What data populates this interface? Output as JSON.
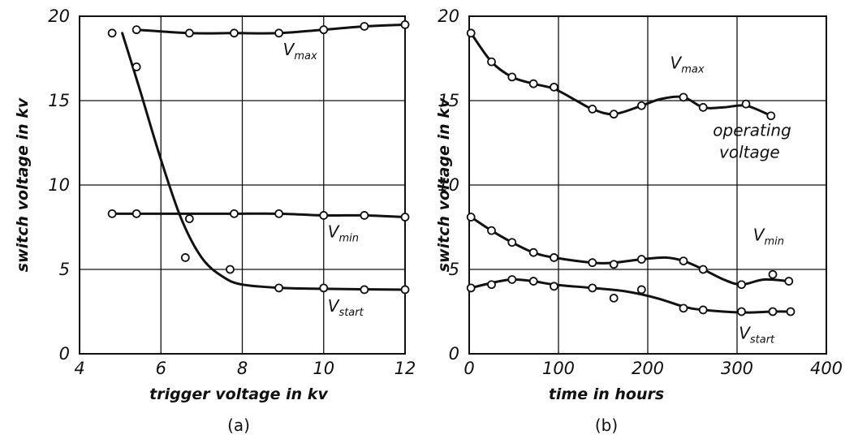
{
  "chart_data": [
    {
      "type": "line",
      "panel_label": "(a)",
      "xlabel": "trigger voltage in kv",
      "ylabel": "switch voltage in kv",
      "xlim": [
        4,
        12
      ],
      "ylim": [
        0,
        20
      ],
      "x_ticks": [
        "4",
        "6",
        "8",
        "10",
        "12"
      ],
      "y_ticks": [
        "0",
        "5",
        "10",
        "15",
        "20"
      ],
      "grid": true,
      "series": [
        {
          "name": "max",
          "points": [
            [
              5.4,
              19.2
            ],
            [
              6.7,
              19.0
            ],
            [
              7.8,
              19.0
            ],
            [
              8.9,
              19.0
            ],
            [
              10.0,
              19.2
            ],
            [
              11.0,
              19.4
            ],
            [
              12.0,
              19.5
            ]
          ],
          "curve": [
            [
              5.4,
              19.2
            ],
            [
              6.7,
              19.0
            ],
            [
              7.8,
              19.0
            ],
            [
              8.9,
              19.0
            ],
            [
              10.0,
              19.2
            ],
            [
              11.0,
              19.4
            ],
            [
              12.0,
              19.5
            ]
          ]
        },
        {
          "name": "min",
          "points": [
            [
              4.8,
              8.3
            ],
            [
              5.4,
              8.3
            ],
            [
              6.7,
              8.0
            ],
            [
              7.8,
              8.3
            ],
            [
              8.9,
              8.3
            ],
            [
              10.0,
              8.2
            ],
            [
              11.0,
              8.2
            ],
            [
              12.0,
              8.1
            ]
          ],
          "curve": [
            [
              4.8,
              8.3
            ],
            [
              5.4,
              8.3
            ],
            [
              6.7,
              8.3
            ],
            [
              7.8,
              8.3
            ],
            [
              8.9,
              8.3
            ],
            [
              10.0,
              8.2
            ],
            [
              11.0,
              8.2
            ],
            [
              12.0,
              8.1
            ]
          ]
        },
        {
          "name": "start",
          "points": [
            [
              4.8,
              19.0
            ],
            [
              5.4,
              17.0
            ],
            [
              6.6,
              5.7
            ],
            [
              7.7,
              5.0
            ],
            [
              8.9,
              3.9
            ],
            [
              10.0,
              3.9
            ],
            [
              11.0,
              3.8
            ],
            [
              12.0,
              3.8
            ]
          ],
          "curve": [
            [
              5.05,
              19.0
            ],
            [
              5.5,
              15.5
            ],
            [
              6.0,
              11.5
            ],
            [
              6.5,
              8.0
            ],
            [
              7.0,
              5.7
            ],
            [
              7.5,
              4.6
            ],
            [
              8.0,
              4.1
            ],
            [
              9.0,
              3.9
            ],
            [
              10.0,
              3.85
            ],
            [
              12.0,
              3.8
            ]
          ]
        }
      ],
      "annotations": [
        {
          "base": "V",
          "sub": "max",
          "x": 9.0,
          "y": 17.7
        },
        {
          "base": "V",
          "sub": "min",
          "x": 10.1,
          "y": 6.9
        },
        {
          "base": "V",
          "sub": "start",
          "x": 10.1,
          "y": 2.5
        }
      ]
    },
    {
      "type": "line",
      "panel_label": "(b)",
      "xlabel": "time in hours",
      "ylabel": "switch voltage in kv",
      "xlim": [
        0,
        400
      ],
      "ylim": [
        0,
        20
      ],
      "x_ticks": [
        "0",
        "100",
        "200",
        "300",
        "400"
      ],
      "y_ticks": [
        "0",
        "5",
        "10",
        "15",
        "20"
      ],
      "grid": true,
      "series": [
        {
          "name": "max",
          "points": [
            [
              2,
              19.0
            ],
            [
              25,
              17.3
            ],
            [
              48,
              16.4
            ],
            [
              72,
              16.0
            ],
            [
              95,
              15.8
            ],
            [
              138,
              14.5
            ],
            [
              162,
              14.2
            ],
            [
              193,
              14.7
            ],
            [
              240,
              15.2
            ],
            [
              262,
              14.6
            ],
            [
              310,
              14.8
            ],
            [
              338,
              14.1
            ]
          ],
          "curve": [
            [
              2,
              19.0
            ],
            [
              25,
              17.3
            ],
            [
              48,
              16.4
            ],
            [
              72,
              16.0
            ],
            [
              95,
              15.7
            ],
            [
              120,
              15.0
            ],
            [
              138,
              14.5
            ],
            [
              162,
              14.2
            ],
            [
              193,
              14.7
            ],
            [
              215,
              15.1
            ],
            [
              240,
              15.2
            ],
            [
              262,
              14.6
            ],
            [
              285,
              14.6
            ],
            [
              310,
              14.7
            ],
            [
              338,
              14.1
            ]
          ]
        },
        {
          "name": "min",
          "points": [
            [
              2,
              8.1
            ],
            [
              25,
              7.3
            ],
            [
              48,
              6.6
            ],
            [
              72,
              6.0
            ],
            [
              95,
              5.7
            ],
            [
              138,
              5.4
            ],
            [
              162,
              5.3
            ],
            [
              193,
              5.6
            ],
            [
              240,
              5.5
            ],
            [
              262,
              5.0
            ],
            [
              305,
              4.1
            ],
            [
              340,
              4.7
            ],
            [
              358,
              4.3
            ]
          ],
          "curve": [
            [
              2,
              8.1
            ],
            [
              25,
              7.3
            ],
            [
              48,
              6.6
            ],
            [
              72,
              6.0
            ],
            [
              95,
              5.7
            ],
            [
              138,
              5.4
            ],
            [
              162,
              5.4
            ],
            [
              193,
              5.6
            ],
            [
              220,
              5.7
            ],
            [
              240,
              5.5
            ],
            [
              262,
              5.0
            ],
            [
              285,
              4.4
            ],
            [
              305,
              4.1
            ],
            [
              330,
              4.4
            ],
            [
              358,
              4.3
            ]
          ]
        },
        {
          "name": "start",
          "points": [
            [
              2,
              3.9
            ],
            [
              25,
              4.1
            ],
            [
              48,
              4.4
            ],
            [
              72,
              4.3
            ],
            [
              95,
              4.0
            ],
            [
              138,
              3.9
            ],
            [
              162,
              3.3
            ],
            [
              193,
              3.8
            ],
            [
              240,
              2.7
            ],
            [
              262,
              2.6
            ],
            [
              305,
              2.5
            ],
            [
              340,
              2.5
            ],
            [
              360,
              2.5
            ]
          ],
          "curve": [
            [
              2,
              3.9
            ],
            [
              25,
              4.2
            ],
            [
              48,
              4.4
            ],
            [
              72,
              4.3
            ],
            [
              95,
              4.1
            ],
            [
              138,
              3.9
            ],
            [
              175,
              3.7
            ],
            [
              210,
              3.3
            ],
            [
              240,
              2.8
            ],
            [
              262,
              2.6
            ],
            [
              305,
              2.45
            ],
            [
              340,
              2.5
            ],
            [
              360,
              2.5
            ]
          ]
        }
      ],
      "annotations": [
        {
          "base": "V",
          "sub": "max",
          "x": 225,
          "y": 16.9
        },
        {
          "base": "V",
          "sub": "min",
          "x": 318,
          "y": 6.7
        },
        {
          "base": "V",
          "sub": "start",
          "x": 302,
          "y": 0.9
        }
      ],
      "labels": [
        {
          "text": "operating",
          "x": 273,
          "y": 12.9
        },
        {
          "text": "voltage",
          "x": 280,
          "y": 11.6
        }
      ]
    }
  ]
}
